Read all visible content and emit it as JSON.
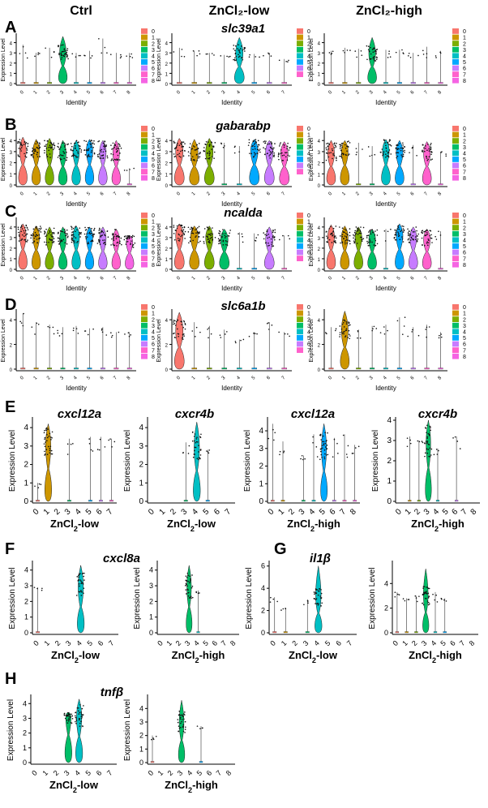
{
  "column_headers": [
    "Ctrl",
    "ZnCl₂-low",
    "ZnCl₂-high"
  ],
  "ylabel": "Expression Level",
  "xlabel": "Identity",
  "colors": {
    "0": "#F8766D",
    "1": "#CD9600",
    "2": "#7CAE00",
    "3": "#00BE67",
    "4": "#00BFC4",
    "5": "#00A9FF",
    "6": "#C77CFF",
    "7": "#FF61CC",
    "8": "#F564E3"
  },
  "chart_data": [
    {
      "type": "violin",
      "panel": "A",
      "title": "slc39a1",
      "condition": "Ctrl",
      "clusters": [
        "0",
        "1",
        "2",
        "3",
        "4",
        "5",
        "6",
        "7",
        "8"
      ],
      "median": [
        0,
        0,
        0,
        3.1,
        0,
        0,
        0,
        0,
        0
      ],
      "max": [
        3.8,
        3.0,
        3.5,
        4.6,
        3.0,
        3.2,
        4.4,
        3.0,
        3.0
      ],
      "ylim": [
        0,
        4.6
      ],
      "yticks": [
        0,
        1,
        2,
        3,
        4
      ],
      "legend": [
        "0",
        "1",
        "2",
        "3",
        "4",
        "5",
        "6",
        "7",
        "8"
      ]
    },
    {
      "type": "violin",
      "panel": "A",
      "title": "",
      "condition": "ZnCl₂-low",
      "clusters": [
        "0",
        "1",
        "2",
        "3",
        "4",
        "5",
        "6",
        "7"
      ],
      "median": [
        0,
        0,
        0,
        0,
        3.0,
        0,
        0,
        0
      ],
      "max": [
        3.5,
        3.2,
        3.0,
        2.8,
        4.5,
        2.9,
        3.0,
        2.4
      ],
      "ylim": [
        0,
        4.6
      ],
      "yticks": [
        0,
        1,
        2,
        3,
        4
      ],
      "legend": [
        "0",
        "1",
        "2",
        "3",
        "4",
        "5",
        "6",
        "7"
      ]
    },
    {
      "type": "violin",
      "panel": "A",
      "title": "",
      "condition": "ZnCl₂-high",
      "clusters": [
        "0",
        "1",
        "2",
        "3",
        "4",
        "5",
        "6",
        "7",
        "8"
      ],
      "median": [
        0,
        0,
        0,
        3.0,
        0,
        0,
        0,
        0,
        0
      ],
      "max": [
        3.2,
        3.5,
        3.4,
        4.5,
        3.3,
        3.3,
        3.0,
        3.6,
        3.2
      ],
      "ylim": [
        0,
        4.6
      ],
      "yticks": [
        0,
        1,
        2,
        3,
        4
      ],
      "legend": [
        "0",
        "1",
        "2",
        "3",
        "4",
        "5",
        "6",
        "7",
        "8"
      ]
    },
    {
      "type": "violin",
      "panel": "B",
      "title": "gabarabp",
      "condition": "Ctrl",
      "clusters": [
        "0",
        "1",
        "2",
        "3",
        "4",
        "5",
        "6",
        "7",
        "8"
      ],
      "median": [
        3.3,
        3.2,
        3.2,
        3.0,
        3.2,
        3.3,
        3.2,
        3.0,
        0
      ],
      "max": [
        4.3,
        4.1,
        4.2,
        4.0,
        4.0,
        4.1,
        4.0,
        4.0,
        1.5
      ],
      "ylim": [
        0,
        4.6
      ],
      "yticks": [
        0,
        1,
        2,
        3,
        4
      ],
      "legend": [
        "0",
        "1",
        "2",
        "3",
        "4",
        "5",
        "6",
        "7",
        "8"
      ]
    },
    {
      "type": "violin",
      "panel": "B",
      "title": "",
      "condition": "ZnCl₂-low",
      "clusters": [
        "0",
        "1",
        "2",
        "3",
        "4",
        "5",
        "6",
        "7"
      ],
      "median": [
        3.2,
        3.0,
        3.1,
        0,
        0,
        3.3,
        3.2,
        3.0
      ],
      "max": [
        4.2,
        4.1,
        4.2,
        3.8,
        3.5,
        4.1,
        4.0,
        3.9
      ],
      "ylim": [
        0,
        4.6
      ],
      "yticks": [
        0,
        1,
        2,
        3,
        4
      ],
      "legend": [
        "0",
        "1",
        "2",
        "3",
        "4",
        "5",
        "6",
        "7"
      ]
    },
    {
      "type": "violin",
      "panel": "B",
      "title": "",
      "condition": "ZnCl₂-high",
      "clusters": [
        "0",
        "1",
        "2",
        "3",
        "4",
        "5",
        "6",
        "7",
        "8"
      ],
      "median": [
        3.0,
        3.2,
        0,
        0,
        3.3,
        3.1,
        0,
        3.0,
        0
      ],
      "max": [
        4.0,
        4.0,
        3.8,
        3.5,
        4.1,
        4.0,
        3.6,
        3.9,
        3.0
      ],
      "ylim": [
        0,
        4.6
      ],
      "yticks": [
        0,
        1,
        2,
        3,
        4
      ],
      "legend": [
        "0",
        "1",
        "2",
        "3",
        "4",
        "5",
        "6",
        "7",
        "8"
      ]
    },
    {
      "type": "violin",
      "panel": "C",
      "title": "ncalda",
      "condition": "Ctrl",
      "clusters": [
        "0",
        "1",
        "2",
        "3",
        "4",
        "5",
        "6",
        "7",
        "8"
      ],
      "median": [
        3.4,
        3.3,
        3.1,
        3.0,
        3.3,
        3.2,
        3.1,
        3.0,
        2.8
      ],
      "max": [
        4.3,
        4.1,
        4.0,
        4.0,
        4.1,
        4.0,
        4.0,
        3.8,
        3.2
      ],
      "ylim": [
        0,
        4.6
      ],
      "yticks": [
        0,
        1,
        2,
        3,
        4
      ],
      "legend": [
        "0",
        "1",
        "2",
        "3",
        "4",
        "5",
        "6",
        "7",
        "8"
      ]
    },
    {
      "type": "violin",
      "panel": "C",
      "title": "",
      "condition": "ZnCl₂-low",
      "clusters": [
        "0",
        "1",
        "2",
        "3",
        "4",
        "5",
        "6",
        "7"
      ],
      "median": [
        3.4,
        3.3,
        3.2,
        3.0,
        0,
        0,
        3.0,
        0
      ],
      "max": [
        4.3,
        4.1,
        4.1,
        3.8,
        3.5,
        3.4,
        4.0,
        3.2
      ],
      "ylim": [
        0,
        4.6
      ],
      "yticks": [
        0,
        1,
        2,
        3,
        4
      ],
      "legend": [
        "0",
        "1",
        "2",
        "3",
        "4",
        "5",
        "6",
        "7"
      ]
    },
    {
      "type": "violin",
      "panel": "C",
      "title": "",
      "condition": "ZnCl₂-high",
      "clusters": [
        "0",
        "1",
        "2",
        "3",
        "4",
        "5",
        "6",
        "7",
        "8"
      ],
      "median": [
        3.3,
        3.2,
        3.2,
        3.0,
        0,
        3.4,
        3.2,
        3.0,
        0
      ],
      "max": [
        4.2,
        4.1,
        4.0,
        3.8,
        3.8,
        4.3,
        4.0,
        3.8,
        3.6
      ],
      "ylim": [
        0,
        4.6
      ],
      "yticks": [
        0,
        1,
        2,
        3,
        4
      ],
      "legend": [
        "0",
        "1",
        "2",
        "3",
        "4",
        "5",
        "6",
        "7",
        "8"
      ]
    },
    {
      "type": "violin",
      "panel": "D",
      "title": "slc6a1b",
      "condition": "Ctrl",
      "clusters": [
        "0",
        "1",
        "2",
        "3",
        "4",
        "5",
        "6",
        "7",
        "8"
      ],
      "median": [
        0,
        0,
        0,
        0,
        0,
        0,
        0,
        0,
        0
      ],
      "max": [
        4.5,
        3.8,
        3.6,
        3.4,
        3.5,
        3.3,
        3.4,
        3.0,
        3.0
      ],
      "ylim": [
        0,
        4.6
      ],
      "yticks": [
        0,
        2,
        4
      ],
      "legend": [
        "0",
        "1",
        "2",
        "3",
        "4",
        "5",
        "6",
        "7",
        "8"
      ]
    },
    {
      "type": "violin",
      "panel": "D",
      "title": "",
      "condition": "ZnCl₂-low",
      "clusters": [
        "0",
        "1",
        "2",
        "3",
        "4",
        "5",
        "6",
        "7"
      ],
      "median": [
        3.2,
        0,
        0,
        0,
        0,
        0,
        0,
        0
      ],
      "max": [
        4.6,
        3.8,
        3.5,
        3.2,
        2.4,
        3.0,
        3.8,
        3.0
      ],
      "ylim": [
        0,
        4.6
      ],
      "yticks": [
        0,
        2,
        4
      ],
      "legend": [
        "0",
        "1",
        "2",
        "3",
        "4",
        "5",
        "6",
        "7"
      ]
    },
    {
      "type": "violin",
      "panel": "D",
      "title": "",
      "condition": "ZnCl₂-high",
      "clusters": [
        "0",
        "1",
        "2",
        "3",
        "4",
        "5",
        "6",
        "7",
        "8"
      ],
      "median": [
        0,
        3.2,
        0,
        0,
        0,
        0,
        0,
        0,
        0
      ],
      "max": [
        3.4,
        4.7,
        3.2,
        3.5,
        3.6,
        4.2,
        3.4,
        3.6,
        3.0
      ],
      "ylim": [
        0,
        4.6
      ],
      "yticks": [
        0,
        2,
        4
      ],
      "legend": [
        "0",
        "1",
        "2",
        "3",
        "4",
        "5",
        "6",
        "7",
        "8"
      ]
    },
    {
      "type": "violin",
      "panel": "E",
      "title": "cxcl12a",
      "condition": "ZnCl₂-low",
      "clusters": [
        "0",
        "1",
        "2",
        "3",
        "4",
        "5",
        "6",
        "7"
      ],
      "median": [
        0,
        3.2,
        0,
        0,
        0,
        0,
        0,
        0
      ],
      "max": [
        1.0,
        4.2,
        0,
        3.4,
        0,
        3.5,
        3.5,
        3.4
      ],
      "ylim": [
        0,
        4.4
      ],
      "yticks": [
        0,
        1,
        2,
        3,
        4
      ],
      "legend": []
    },
    {
      "type": "violin",
      "panel": "E",
      "title": "cxcr4b",
      "condition": "ZnCl₂-low",
      "clusters": [
        "0",
        "1",
        "2",
        "3",
        "4",
        "5",
        "6",
        "7"
      ],
      "median": [
        0,
        0,
        0,
        0,
        3.0,
        0,
        0,
        0
      ],
      "max": [
        0,
        0,
        0,
        3.2,
        4.3,
        2.8,
        0,
        0
      ],
      "ylim": [
        0,
        4.4
      ],
      "yticks": [
        0,
        1,
        2,
        3,
        4
      ],
      "legend": []
    },
    {
      "type": "violin",
      "panel": "E",
      "title": "cxcl12a",
      "condition": "ZnCl₂-high",
      "clusters": [
        "0",
        "1",
        "2",
        "3",
        "4",
        "5",
        "6",
        "7",
        "8"
      ],
      "median": [
        0,
        0,
        0,
        0,
        0,
        3.1,
        0,
        0,
        0
      ],
      "max": [
        4.4,
        3.4,
        0,
        2.6,
        3.8,
        4.4,
        3.6,
        3.8,
        3.2
      ],
      "ylim": [
        0,
        4.6
      ],
      "yticks": [
        0,
        1,
        2,
        3,
        4
      ],
      "legend": []
    },
    {
      "type": "violin",
      "panel": "E",
      "title": "cxcr4b",
      "condition": "ZnCl₂-high",
      "clusters": [
        "0",
        "1",
        "2",
        "3",
        "4",
        "5",
        "6",
        "7",
        "8"
      ],
      "median": [
        0,
        0,
        0,
        3.0,
        0,
        0,
        0,
        0,
        0
      ],
      "max": [
        0,
        3.2,
        3.0,
        4.0,
        2.6,
        0,
        3.2,
        0,
        0
      ],
      "ylim": [
        0,
        4.0
      ],
      "yticks": [
        0,
        1,
        2,
        3,
        4
      ],
      "legend": []
    },
    {
      "type": "violin",
      "panel": "F",
      "title": "cxcl8a",
      "condition": "ZnCl₂-low",
      "clusters": [
        "0",
        "1",
        "2",
        "3",
        "4",
        "5",
        "6",
        "7"
      ],
      "median": [
        0,
        0,
        0,
        0,
        3.0,
        0,
        0,
        0
      ],
      "max": [
        2.9,
        0,
        0,
        0,
        4.3,
        0,
        0,
        0
      ],
      "ylim": [
        0,
        4.4
      ],
      "yticks": [
        0,
        1,
        2,
        3,
        4
      ],
      "legend": []
    },
    {
      "type": "violin",
      "panel": "F",
      "title": "",
      "condition": "ZnCl₂-high",
      "clusters": [
        "0",
        "1",
        "2",
        "3",
        "4",
        "5",
        "6",
        "7",
        "8"
      ],
      "median": [
        0,
        0,
        0,
        3.0,
        0,
        0,
        0,
        0,
        0
      ],
      "max": [
        0,
        0,
        0,
        4.3,
        2.7,
        0,
        0,
        0,
        0
      ],
      "ylim": [
        0,
        4.4
      ],
      "yticks": [
        0,
        1,
        2,
        3,
        4
      ],
      "legend": []
    },
    {
      "type": "violin",
      "panel": "G",
      "title": "il1β",
      "condition": "ZnCl₂-low",
      "clusters": [
        "0",
        "1",
        "2",
        "3",
        "4",
        "5",
        "6",
        "7"
      ],
      "median": [
        0,
        0,
        0,
        0,
        3.2,
        0,
        0,
        0
      ],
      "max": [
        3.2,
        2.2,
        0,
        3.0,
        6.0,
        0,
        0,
        0
      ],
      "ylim": [
        0,
        6.2
      ],
      "yticks": [
        0,
        2,
        4,
        6
      ],
      "legend": []
    },
    {
      "type": "violin",
      "panel": "G",
      "title": "",
      "condition": "ZnCl₂-high",
      "clusters": [
        "0",
        "1",
        "2",
        "3",
        "4",
        "5",
        "6",
        "7",
        "8"
      ],
      "median": [
        0,
        0,
        0,
        3.0,
        0,
        0,
        0,
        0,
        0
      ],
      "max": [
        3.3,
        2.8,
        3.0,
        5.2,
        3.3,
        2.8,
        0,
        0,
        0
      ],
      "ylim": [
        0,
        5.6
      ],
      "yticks": [
        0,
        2,
        4
      ],
      "legend": []
    },
    {
      "type": "violin",
      "panel": "H",
      "title": "tnfβ",
      "condition": "ZnCl₂-low",
      "clusters": [
        "0",
        "1",
        "2",
        "3",
        "4",
        "5",
        "6",
        "7"
      ],
      "median": [
        0,
        0,
        0,
        3.4,
        3.2,
        0,
        0,
        0
      ],
      "max": [
        0,
        0,
        0,
        3.4,
        4.3,
        0,
        0,
        0
      ],
      "ylim": [
        0,
        4.4
      ],
      "yticks": [
        0,
        1,
        2,
        3,
        4
      ],
      "legend": []
    },
    {
      "type": "violin",
      "panel": "H",
      "title": "",
      "condition": "ZnCl₂-high",
      "clusters": [
        "0",
        "1",
        "2",
        "3",
        "4",
        "5",
        "6",
        "7",
        "8"
      ],
      "median": [
        0,
        0,
        0,
        3.0,
        0,
        0,
        0,
        0,
        0
      ],
      "max": [
        2.0,
        0,
        0,
        4.6,
        0,
        2.7,
        0,
        0,
        0
      ],
      "ylim": [
        0,
        4.8
      ],
      "yticks": [
        0,
        1,
        2,
        3,
        4
      ],
      "legend": []
    }
  ]
}
